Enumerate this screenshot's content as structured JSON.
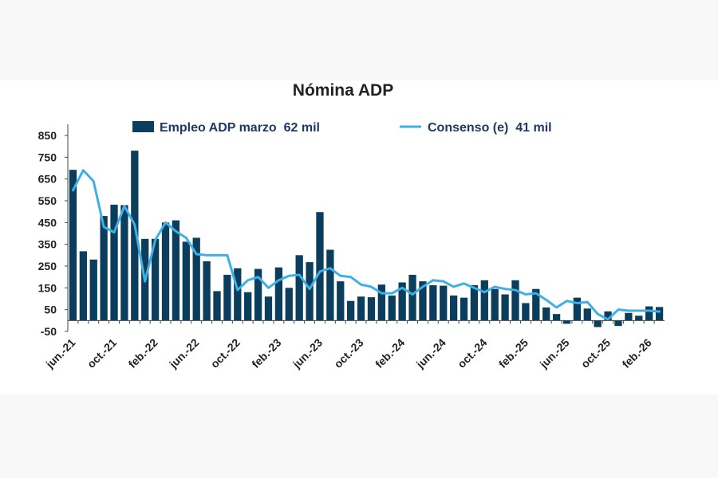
{
  "colors": {
    "bar": "#0b3d5c",
    "line": "#3fb0e6",
    "axis": "#444444",
    "page_background": "#f8f8f8",
    "chart_background": "#ffffff"
  },
  "chart_data": {
    "type": "bar",
    "title": "Nómina ADP",
    "xlabel": "",
    "ylabel": "",
    "ylim": [
      -50,
      850
    ],
    "yticks": [
      -50,
      50,
      150,
      250,
      350,
      450,
      550,
      650,
      750,
      850
    ],
    "grid": false,
    "legend_position": "top",
    "x_tick_labels": [
      "jun.-21",
      "oct.-21",
      "feb.-22",
      "jun.-22",
      "oct.-22",
      "feb.-23",
      "jun.-23",
      "oct.-23",
      "feb.-24",
      "jun.-24",
      "oct.-24",
      "feb.-25",
      "jun.-25",
      "oct.-25",
      "feb.-26"
    ],
    "categories": [
      "jun.-21",
      "jul.-21",
      "ago.-21",
      "sep.-21",
      "oct.-21",
      "nov.-21",
      "dic.-21",
      "ene.-22",
      "feb.-22",
      "mar.-22",
      "abr.-22",
      "may.-22",
      "jun.-22",
      "jul.-22",
      "ago.-22",
      "sep.-22",
      "oct.-22",
      "nov.-22",
      "dic.-22",
      "ene.-23",
      "feb.-23",
      "mar.-23",
      "abr.-23",
      "may.-23",
      "jun.-23",
      "jul.-23",
      "ago.-23",
      "sep.-23",
      "oct.-23",
      "nov.-23",
      "dic.-23",
      "ene.-24",
      "feb.-24",
      "mar.-24",
      "abr.-24",
      "may.-24",
      "jun.-24",
      "jul.-24",
      "ago.-24",
      "sep.-24",
      "oct.-24",
      "nov.-24",
      "dic.-24",
      "ene.-25",
      "feb.-25",
      "mar.-25",
      "abr.-25",
      "may.-25",
      "jun.-25",
      "jul.-25",
      "ago.-25",
      "sep.-25",
      "oct.-25",
      "nov.-25",
      "dic.-25",
      "ene.-26",
      "feb.-26",
      "mar.-26"
    ],
    "series": [
      {
        "name": "Empleo ADP marzo  62 mil",
        "type": "bar",
        "values": [
          692,
          318,
          280,
          480,
          532,
          530,
          780,
          375,
          375,
          450,
          460,
          362,
          380,
          272,
          135,
          210,
          240,
          130,
          237,
          110,
          244,
          150,
          300,
          268,
          498,
          325,
          180,
          90,
          110,
          107,
          165,
          115,
          175,
          210,
          180,
          162,
          160,
          115,
          105,
          162,
          185,
          145,
          120,
          185,
          80,
          145,
          60,
          30,
          -15,
          105,
          55,
          -30,
          42,
          -25,
          35,
          22,
          65,
          62
        ]
      },
      {
        "name": "Consenso (e)  41 mil",
        "type": "line",
        "values": [
          598,
          690,
          640,
          430,
          405,
          525,
          440,
          180,
          370,
          450,
          410,
          380,
          305,
          300,
          300,
          300,
          140,
          185,
          200,
          150,
          185,
          205,
          210,
          145,
          225,
          240,
          205,
          200,
          165,
          155,
          125,
          125,
          150,
          120,
          155,
          185,
          180,
          155,
          170,
          150,
          130,
          155,
          145,
          140,
          120,
          125,
          95,
          60,
          90,
          80,
          85,
          30,
          5,
          50,
          45,
          45,
          45,
          41
        ]
      }
    ]
  }
}
